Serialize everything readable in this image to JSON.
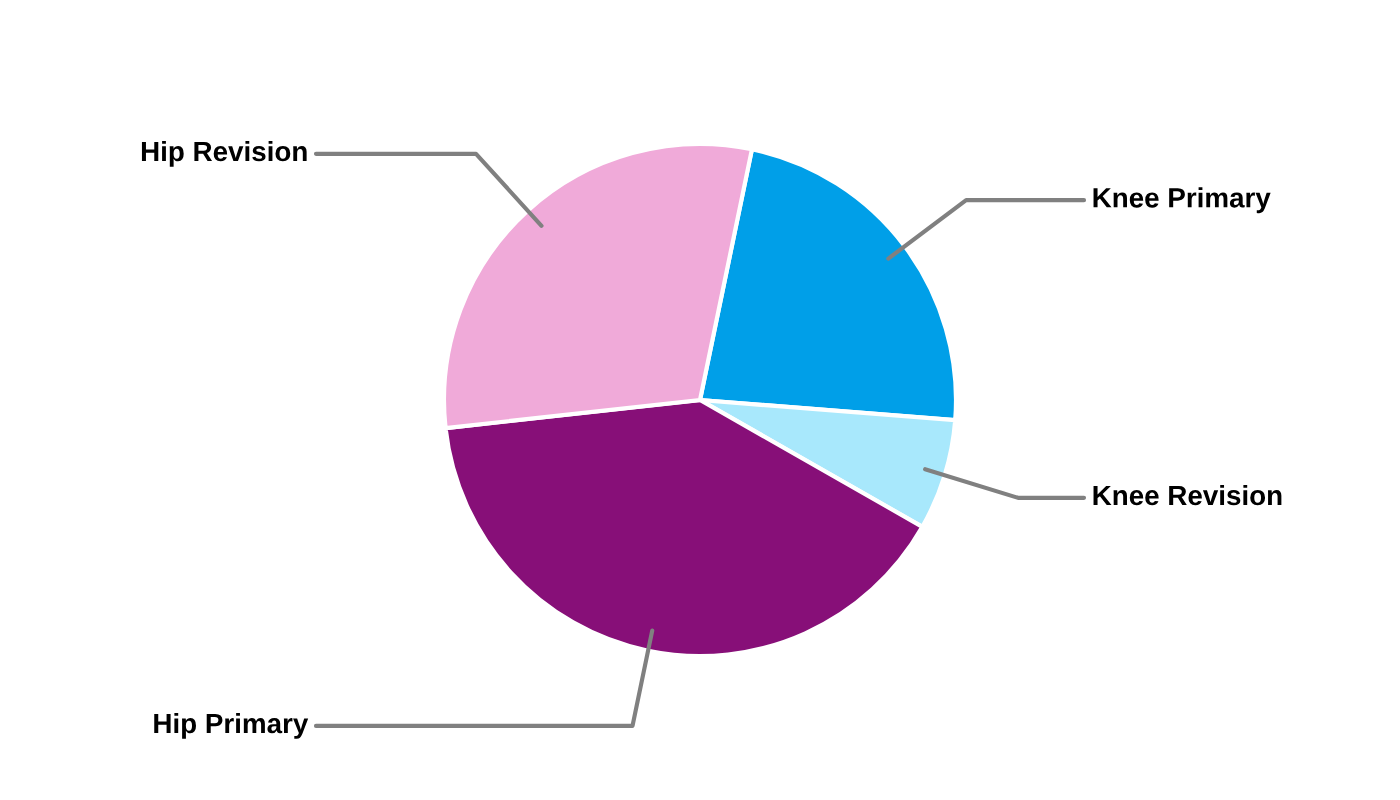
{
  "chart_data": {
    "type": "pie",
    "categories": [
      "Knee Primary",
      "Knee Revision",
      "Hip Primary",
      "Hip Revision"
    ],
    "values": [
      23,
      7,
      40,
      30
    ],
    "colors": [
      "#009fe8",
      "#a8e8fc",
      "#870f78",
      "#f0aad9"
    ]
  }
}
